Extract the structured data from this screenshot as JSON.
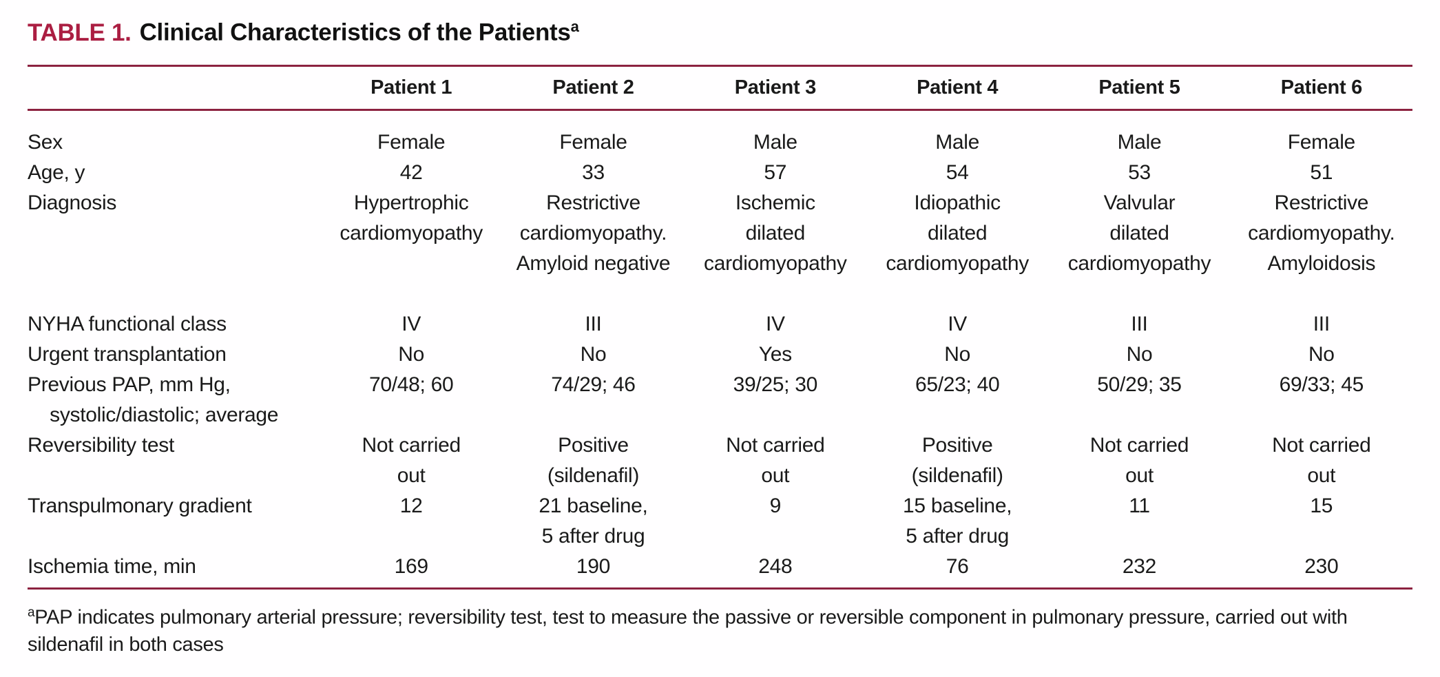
{
  "title": {
    "label": "TABLE 1.",
    "text": "Clinical Characteristics of the Patients",
    "footnote_marker": "a"
  },
  "table": {
    "columns": [
      "Patient 1",
      "Patient 2",
      "Patient 3",
      "Patient 4",
      "Patient 5",
      "Patient 6"
    ],
    "rows": [
      {
        "label": "Sex",
        "cells": [
          "Female",
          "Female",
          "Male",
          "Male",
          "Male",
          "Female"
        ]
      },
      {
        "label": "Age, y",
        "cells": [
          "42",
          "33",
          "57",
          "54",
          "53",
          "51"
        ]
      },
      {
        "label": "Diagnosis",
        "cells": [
          "Hypertrophic\ncardiomyopathy",
          "Restrictive\ncardiomyopathy.\nAmyloid negative",
          "Ischemic\ndilated\ncardiomyopathy",
          "Idiopathic\ndilated\ncardiomyopathy",
          "Valvular\ndilated\ncardiomyopathy",
          "Restrictive\ncardiomyopathy.\nAmyloidosis"
        ]
      },
      {
        "label": "NYHA functional class",
        "cells": [
          "IV",
          "III",
          "IV",
          "IV",
          "III",
          "III"
        ]
      },
      {
        "label": "Urgent transplantation",
        "cells": [
          "No",
          "No",
          "Yes",
          "No",
          "No",
          "No"
        ]
      },
      {
        "label": "Previous PAP, mm Hg,\n    systolic/diastolic; average",
        "cells": [
          "70/48; 60",
          "74/29; 46",
          "39/25; 30",
          "65/23; 40",
          "50/29; 35",
          "69/33; 45"
        ]
      },
      {
        "label": "Reversibility test",
        "cells": [
          "Not carried\nout",
          "Positive\n(sildenafil)",
          "Not carried\nout",
          "Positive\n(sildenafil)",
          "Not carried\nout",
          "Not carried\nout"
        ]
      },
      {
        "label": "Transpulmonary gradient",
        "cells": [
          "12",
          "21 baseline,\n5 after drug",
          "9",
          "15 baseline,\n5 after drug",
          "11",
          "15"
        ]
      },
      {
        "label": "Ischemia time, min",
        "cells": [
          "169",
          "190",
          "248",
          "76",
          "232",
          "230"
        ]
      }
    ]
  },
  "footnote": {
    "marker": "a",
    "text": "PAP indicates pulmonary arterial pressure; reversibility test, test to measure the passive or reversible component in pulmonary pressure, carried out with sildenafil in both cases"
  },
  "colors": {
    "accent_title": "#ab1e42",
    "rule": "#8c2240",
    "text": "#1a1a1a",
    "background": "#fffeff"
  }
}
